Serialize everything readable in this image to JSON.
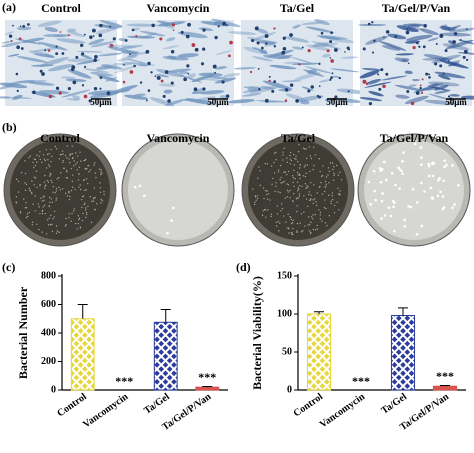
{
  "micrographs": {
    "label": "(a)",
    "titles": [
      "Control",
      "Vancomycin",
      "Ta/Gel",
      "Ta/Gel/P/Van"
    ],
    "scale_bar": "50μm"
  },
  "plates": {
    "label": "(b)",
    "titles": [
      "Control",
      "Vancomycin",
      "Ta/Gel",
      "Ta/Gel/P/Van"
    ]
  },
  "chart_data": [
    {
      "type": "bar",
      "panel_label": "(c)",
      "y_label": "Bacterial Number",
      "categories": [
        "Control",
        "Vancomycin",
        "Ta/Gel",
        "Ta/Gel/P/Van"
      ],
      "values": [
        500,
        0,
        475,
        20
      ],
      "errors": [
        100,
        0,
        90,
        5
      ],
      "colors": [
        "#e6d640",
        "#888888",
        "#2b3c9c",
        "#d9534f"
      ],
      "fill_styles": [
        "crosshatch",
        "solid",
        "crosshatch",
        "solid"
      ],
      "annotations": [
        {
          "category": "Vancomycin",
          "text": "***"
        },
        {
          "category": "Ta/Gel/P/Van",
          "text": "***"
        }
      ],
      "ylim": [
        0,
        800
      ],
      "yticks": [
        0,
        200,
        400,
        600,
        800
      ]
    },
    {
      "type": "bar",
      "panel_label": "(d)",
      "y_label": "Bacterial Viability(%)",
      "categories": [
        "Control",
        "Vancomycin",
        "Ta/Gel",
        "Ta/Gel/P/Van"
      ],
      "values": [
        100,
        0,
        98,
        5
      ],
      "errors": [
        3,
        0,
        10,
        1
      ],
      "colors": [
        "#e6d640",
        "#888888",
        "#2b3c9c",
        "#d9534f"
      ],
      "fill_styles": [
        "crosshatch",
        "solid",
        "crosshatch",
        "solid"
      ],
      "annotations": [
        {
          "category": "Vancomycin",
          "text": "***"
        },
        {
          "category": "Ta/Gel/P/Van",
          "text": "***"
        }
      ],
      "ylim": [
        0,
        150
      ],
      "yticks": [
        0,
        50,
        100,
        150
      ]
    }
  ]
}
